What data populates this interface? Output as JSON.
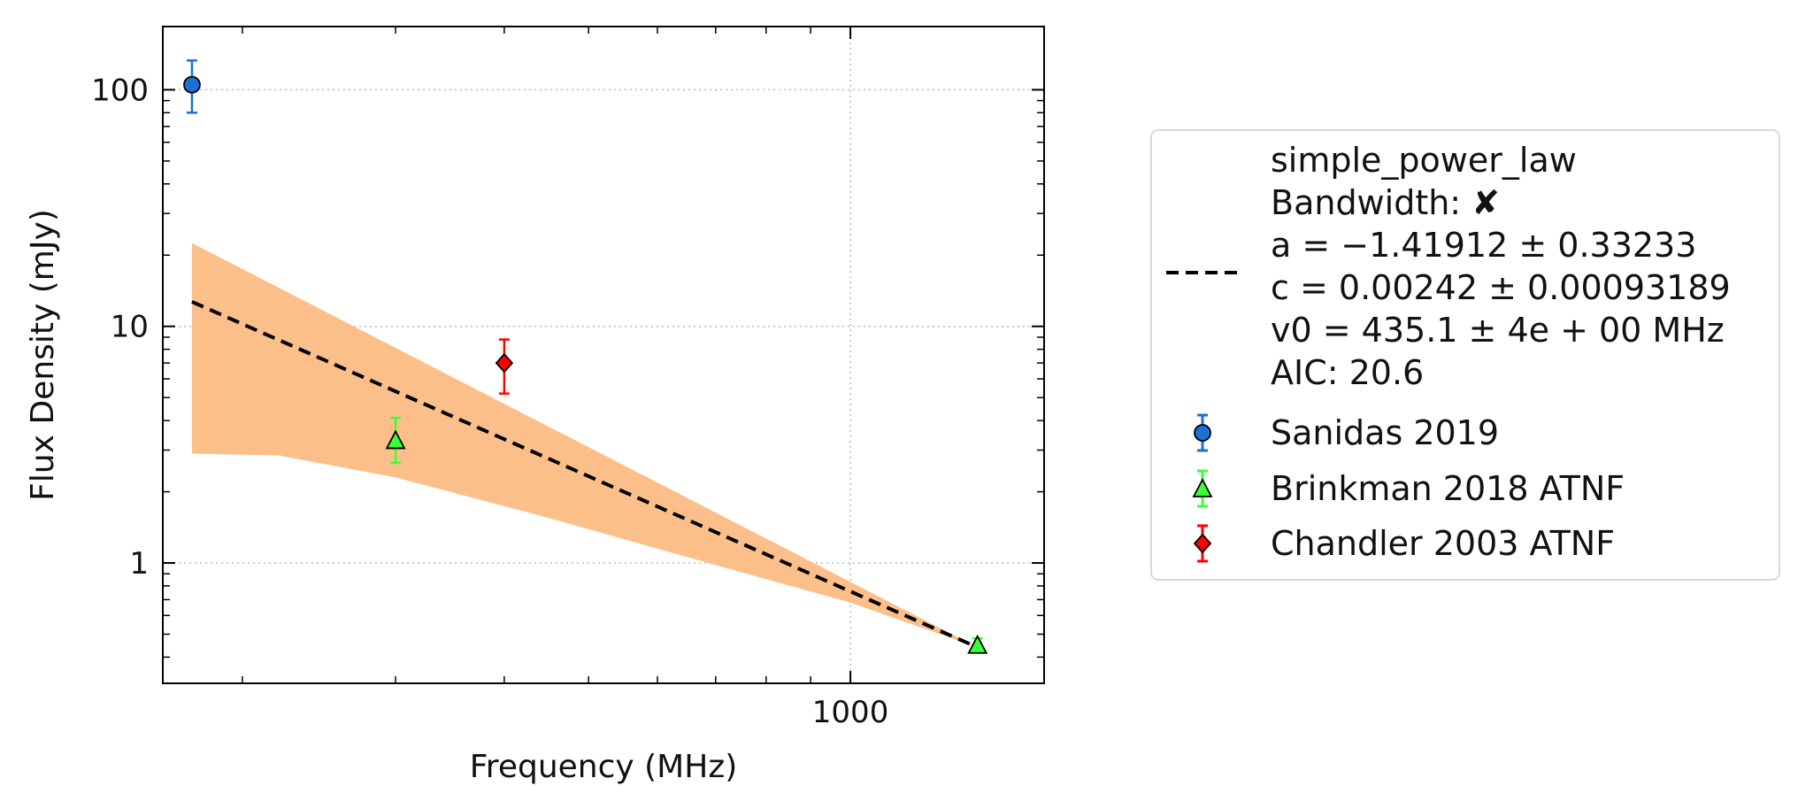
{
  "chart_data": {
    "type": "scatter",
    "title": "",
    "xlabel": "Frequency (MHz)",
    "ylabel": "Flux Density (mJy)",
    "x_scale": "log",
    "y_scale": "log",
    "xlim": [
      162,
      1670
    ],
    "ylim": [
      0.31,
      185
    ],
    "grid": true,
    "legend_position": "right",
    "x_major_ticks": [
      {
        "value": 1000,
        "label": "1000"
      }
    ],
    "y_major_ticks": [
      {
        "value": 1,
        "label": "1"
      },
      {
        "value": 10,
        "label": "10"
      },
      {
        "value": 100,
        "label": "100"
      }
    ],
    "fit": {
      "model": "simple_power_law",
      "legend_lines": [
        "simple_power_law",
        "Bandwidth: ✘",
        "a = −1.41912 ± 0.33233",
        "c = 0.00242 ± 0.00093189",
        "v0 = 435.1 ± 4e + 00 MHz",
        "AIC: 20.6"
      ],
      "line": [
        {
          "x": 175,
          "y": 12.7
        },
        {
          "x": 1400,
          "y": 0.44
        }
      ],
      "band_upper": [
        {
          "x": 175,
          "y": 22.5
        },
        {
          "x": 1400,
          "y": 0.44
        }
      ],
      "band_lower": [
        {
          "x": 175,
          "y": 2.9
        },
        {
          "x": 220,
          "y": 2.85
        },
        {
          "x": 300,
          "y": 2.3
        },
        {
          "x": 450,
          "y": 1.55
        },
        {
          "x": 700,
          "y": 0.98
        },
        {
          "x": 1000,
          "y": 0.68
        },
        {
          "x": 1400,
          "y": 0.44
        }
      ],
      "line_color": "#000000",
      "band_color": "#fdbf89"
    },
    "series": [
      {
        "name": "Sanidas 2019",
        "marker": "circle",
        "color": "#1f6fd6",
        "points": [
          {
            "x": 175,
            "y": 105,
            "yerr_low": 25,
            "yerr_high": 28
          }
        ]
      },
      {
        "name": "Brinkman 2018 ATNF",
        "marker": "triangle",
        "color": "#3cff3c",
        "points": [
          {
            "x": 300,
            "y": 3.3,
            "yerr_low": 0.65,
            "yerr_high": 0.8
          },
          {
            "x": 1400,
            "y": 0.45,
            "yerr_low": 0.03,
            "yerr_high": 0.03
          }
        ]
      },
      {
        "name": "Chandler 2003 ATNF",
        "marker": "diamond",
        "color": "#ff0000",
        "points": [
          {
            "x": 400,
            "y": 7.0,
            "yerr_low": 1.8,
            "yerr_high": 1.8
          }
        ]
      }
    ]
  }
}
